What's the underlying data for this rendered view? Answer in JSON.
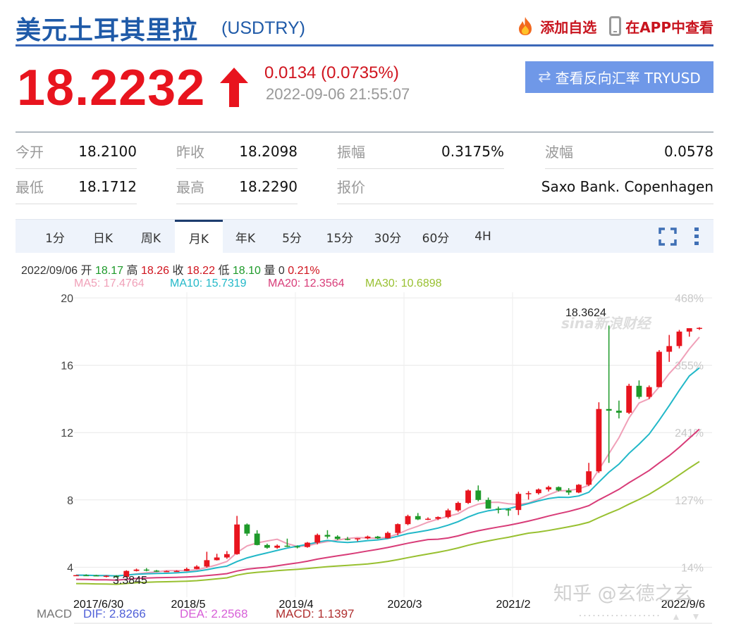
{
  "header": {
    "title": "美元土耳其里拉",
    "code": "(USDTRY)",
    "add_watch": "添加自选",
    "view_app": "在APP中查看"
  },
  "quote": {
    "price": "18.2232",
    "change": "0.0134 (0.0735%)",
    "timestamp": "2022-09-06 21:55:07",
    "reverse_button": "查看反向汇率 TRYUSD",
    "colors": {
      "up": "#e8141e",
      "brand": "#1f5aa8",
      "button": "#6f98e8"
    }
  },
  "stats": [
    {
      "label": "今开",
      "value": "18.2100"
    },
    {
      "label": "昨收",
      "value": "18.2098"
    },
    {
      "label": "振幅",
      "value": "0.3175%"
    },
    {
      "label": "波幅",
      "value": "0.0578"
    },
    {
      "label": "最低",
      "value": "18.1712"
    },
    {
      "label": "最高",
      "value": "18.2290"
    },
    {
      "label": "报价",
      "value": "Saxo Bank. Copenhagen"
    }
  ],
  "tabs": [
    {
      "label": "1分"
    },
    {
      "label": "日K"
    },
    {
      "label": "周K"
    },
    {
      "label": "月K",
      "active": true
    },
    {
      "label": "年K"
    },
    {
      "label": "5分"
    },
    {
      "label": "15分"
    },
    {
      "label": "30分"
    },
    {
      "label": "60分"
    },
    {
      "label": "4H"
    }
  ],
  "tools": {
    "fullscreen": "fullscreen-icon",
    "more": "more-vertical-icon"
  },
  "ohlc_info": {
    "date": "2022/09/06",
    "open_label": "开",
    "open": "18.17",
    "high_label": "高",
    "high": "18.26",
    "close_label": "收",
    "close": "18.22",
    "low_label": "低",
    "low": "18.10",
    "vol_label": "量",
    "vol": "0",
    "pct": "0.21%"
  },
  "ma_legend": [
    {
      "label": "MA5: 17.4764",
      "color": "#f0a0b8"
    },
    {
      "label": "MA10: 15.7319",
      "color": "#22b8c8"
    },
    {
      "label": "MA20: 12.3564",
      "color": "#d83c78"
    },
    {
      "label": "MA30: 10.6898",
      "color": "#98c030"
    }
  ],
  "macd": {
    "label": "MACD",
    "dif": "DIF: 2.8266",
    "dea": "DEA: 2.2568",
    "macd": "MACD: 1.1397"
  },
  "watermark": {
    "sina": "sina新浪财经",
    "zhihu": "知乎 @玄德之玄"
  },
  "chart_data": {
    "type": "candlestick",
    "title": "USDTRY 月K",
    "xlabel": "",
    "ylabel": "",
    "ylim": [
      2.6,
      20
    ],
    "y_ticks": [
      20,
      16,
      12,
      8,
      4
    ],
    "pct_ticks": [
      "468%",
      "355%",
      "241%",
      "127%",
      "14%"
    ],
    "x_tick_labels": [
      "2017/6/30",
      "2018/5",
      "2019/4",
      "2020/3",
      "2021/2",
      "2022/9/6"
    ],
    "annotations": [
      {
        "text": "18.3624",
        "type": "max"
      },
      {
        "text": "3.3845",
        "type": "min"
      }
    ],
    "grid": true,
    "candles": [
      [
        3.52,
        3.54,
        3.5,
        3.53
      ],
      [
        3.53,
        3.58,
        3.5,
        3.52
      ],
      [
        3.52,
        3.55,
        3.48,
        3.47
      ],
      [
        3.47,
        3.52,
        3.4,
        3.49
      ],
      [
        3.49,
        3.53,
        3.38,
        3.42
      ],
      [
        3.42,
        3.82,
        3.4,
        3.78
      ],
      [
        3.78,
        3.92,
        3.75,
        3.86
      ],
      [
        3.86,
        3.95,
        3.76,
        3.8
      ],
      [
        3.8,
        3.84,
        3.72,
        3.76
      ],
      [
        3.76,
        3.8,
        3.72,
        3.77
      ],
      [
        3.77,
        3.82,
        3.73,
        3.78
      ],
      [
        3.78,
        3.98,
        3.76,
        3.9
      ],
      [
        3.9,
        4.12,
        3.88,
        4.04
      ],
      [
        4.04,
        4.92,
        3.98,
        4.42
      ],
      [
        4.42,
        4.8,
        4.4,
        4.58
      ],
      [
        4.58,
        4.96,
        4.5,
        4.78
      ],
      [
        4.78,
        7.05,
        4.74,
        6.54
      ],
      [
        6.54,
        6.6,
        5.86,
        6.0
      ],
      [
        6.0,
        6.2,
        5.3,
        5.32
      ],
      [
        5.32,
        5.4,
        5.1,
        5.16
      ],
      [
        5.16,
        5.35,
        5.1,
        5.28
      ],
      [
        5.28,
        5.7,
        5.2,
        5.24
      ],
      [
        5.24,
        5.3,
        5.12,
        5.2
      ],
      [
        5.2,
        5.5,
        5.16,
        5.46
      ],
      [
        5.46,
        6.0,
        5.36,
        5.92
      ],
      [
        5.92,
        6.2,
        5.7,
        5.82
      ],
      [
        5.82,
        5.9,
        5.62,
        5.68
      ],
      [
        5.68,
        5.8,
        5.6,
        5.66
      ],
      [
        5.66,
        5.72,
        5.54,
        5.72
      ],
      [
        5.72,
        5.88,
        5.66,
        5.82
      ],
      [
        5.82,
        5.86,
        5.68,
        5.72
      ],
      [
        5.72,
        6.12,
        5.7,
        6.04
      ],
      [
        6.04,
        6.6,
        5.9,
        6.56
      ],
      [
        6.56,
        7.12,
        6.5,
        7.04
      ],
      [
        7.04,
        7.22,
        6.8,
        6.84
      ],
      [
        6.84,
        6.96,
        6.8,
        6.88
      ],
      [
        6.88,
        7.02,
        6.8,
        6.98
      ],
      [
        6.98,
        7.48,
        6.9,
        7.38
      ],
      [
        7.38,
        7.9,
        7.3,
        7.82
      ],
      [
        7.82,
        8.62,
        7.76,
        8.56
      ],
      [
        8.56,
        8.86,
        7.92,
        8.0
      ],
      [
        8.0,
        8.14,
        7.48,
        7.48
      ],
      [
        7.48,
        7.6,
        7.2,
        7.44
      ],
      [
        7.44,
        7.5,
        7.05,
        7.4
      ],
      [
        7.4,
        8.48,
        7.1,
        8.36
      ],
      [
        8.36,
        8.52,
        8.02,
        8.4
      ],
      [
        8.4,
        8.68,
        8.32,
        8.62
      ],
      [
        8.62,
        8.84,
        8.5,
        8.76
      ],
      [
        8.76,
        8.8,
        8.5,
        8.56
      ],
      [
        8.56,
        8.7,
        8.3,
        8.44
      ],
      [
        8.44,
        8.94,
        8.4,
        8.9
      ],
      [
        8.9,
        10.2,
        8.82,
        9.7
      ],
      [
        9.7,
        13.8,
        9.6,
        13.4
      ],
      [
        13.4,
        18.36,
        10.2,
        13.3
      ],
      [
        13.3,
        13.9,
        12.84,
        13.18
      ],
      [
        13.18,
        14.9,
        13.1,
        14.78
      ],
      [
        14.78,
        15.1,
        14.0,
        14.12
      ],
      [
        14.12,
        14.8,
        14.0,
        14.7
      ],
      [
        14.7,
        16.9,
        14.8,
        16.8
      ],
      [
        16.8,
        17.8,
        16.2,
        17.14
      ],
      [
        17.14,
        18.1,
        17.0,
        18.0
      ],
      [
        18.0,
        18.2,
        17.7,
        18.2
      ],
      [
        18.17,
        18.26,
        18.1,
        18.22
      ]
    ],
    "series": [
      {
        "name": "MA5",
        "color": "#f0a0b8",
        "last": 17.4764
      },
      {
        "name": "MA10",
        "color": "#22b8c8",
        "last": 15.7319
      },
      {
        "name": "MA20",
        "color": "#d83c78",
        "last": 12.3564
      },
      {
        "name": "MA30",
        "color": "#98c030",
        "last": 10.6898
      }
    ]
  }
}
